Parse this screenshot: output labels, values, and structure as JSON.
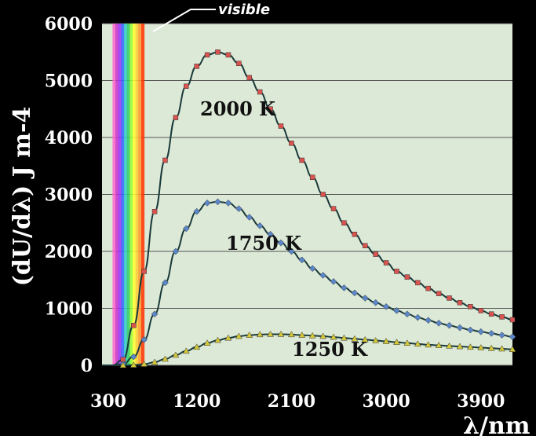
{
  "chart_data": {
    "type": "line",
    "title": "",
    "xlabel": "λ/nm",
    "ylabel": "(dU/dλ) J m-4",
    "xlim": [
      300,
      4200
    ],
    "ylim": [
      0,
      6000
    ],
    "x_ticks": [
      "300",
      "1200",
      "2100",
      "3000",
      "3900"
    ],
    "y_ticks": [
      "0",
      "1000",
      "2000",
      "3000",
      "4000",
      "5000",
      "6000"
    ],
    "grid": true,
    "x": [
      300,
      400,
      500,
      600,
      700,
      800,
      900,
      1000,
      1100,
      1200,
      1300,
      1400,
      1500,
      1600,
      1700,
      1800,
      1900,
      2000,
      2100,
      2200,
      2300,
      2400,
      2500,
      2600,
      2700,
      2800,
      2900,
      3000,
      3100,
      3200,
      3300,
      3400,
      3500,
      3600,
      3700,
      3800,
      3900,
      4000,
      4100,
      4200
    ],
    "series": [
      {
        "name": "2000 K",
        "color": "#d9534f",
        "values": [
          0,
          0,
          100,
          700,
          1650,
          2700,
          3600,
          4350,
          4900,
          5250,
          5450,
          5500,
          5450,
          5300,
          5050,
          4800,
          4500,
          4200,
          3900,
          3600,
          3300,
          3000,
          2750,
          2500,
          2300,
          2100,
          1950,
          1800,
          1650,
          1550,
          1450,
          1350,
          1260,
          1180,
          1100,
          1030,
          960,
          900,
          850,
          800
        ]
      },
      {
        "name": "1750 K",
        "color": "#5b86c8",
        "values": [
          0,
          0,
          20,
          150,
          450,
          900,
          1450,
          2000,
          2400,
          2700,
          2850,
          2870,
          2850,
          2750,
          2600,
          2450,
          2300,
          2150,
          2000,
          1850,
          1700,
          1580,
          1470,
          1360,
          1270,
          1180,
          1100,
          1030,
          960,
          900,
          840,
          790,
          740,
          700,
          660,
          620,
          590,
          560,
          530,
          500
        ]
      },
      {
        "name": "1250 K",
        "color": "#d4c83a",
        "values": [
          0,
          0,
          0,
          5,
          20,
          55,
          110,
          180,
          250,
          320,
          390,
          440,
          480,
          510,
          530,
          540,
          545,
          545,
          540,
          530,
          520,
          510,
          495,
          480,
          465,
          450,
          435,
          420,
          405,
          390,
          375,
          360,
          350,
          340,
          330,
          320,
          310,
          300,
          290,
          280
        ]
      }
    ],
    "annotations": [
      {
        "text": "visible",
        "x_range": [
          400,
          700
        ]
      },
      {
        "text": "2000 K"
      },
      {
        "text": "1750 K"
      },
      {
        "text": "1250 K"
      }
    ],
    "visible_band_colors": [
      "#ff66cc",
      "#cc33cc",
      "#9933ff",
      "#3366ff",
      "#33cccc",
      "#33cc66",
      "#99ff33",
      "#ffff33",
      "#ffcc33",
      "#ff9933",
      "#ff3300"
    ]
  }
}
